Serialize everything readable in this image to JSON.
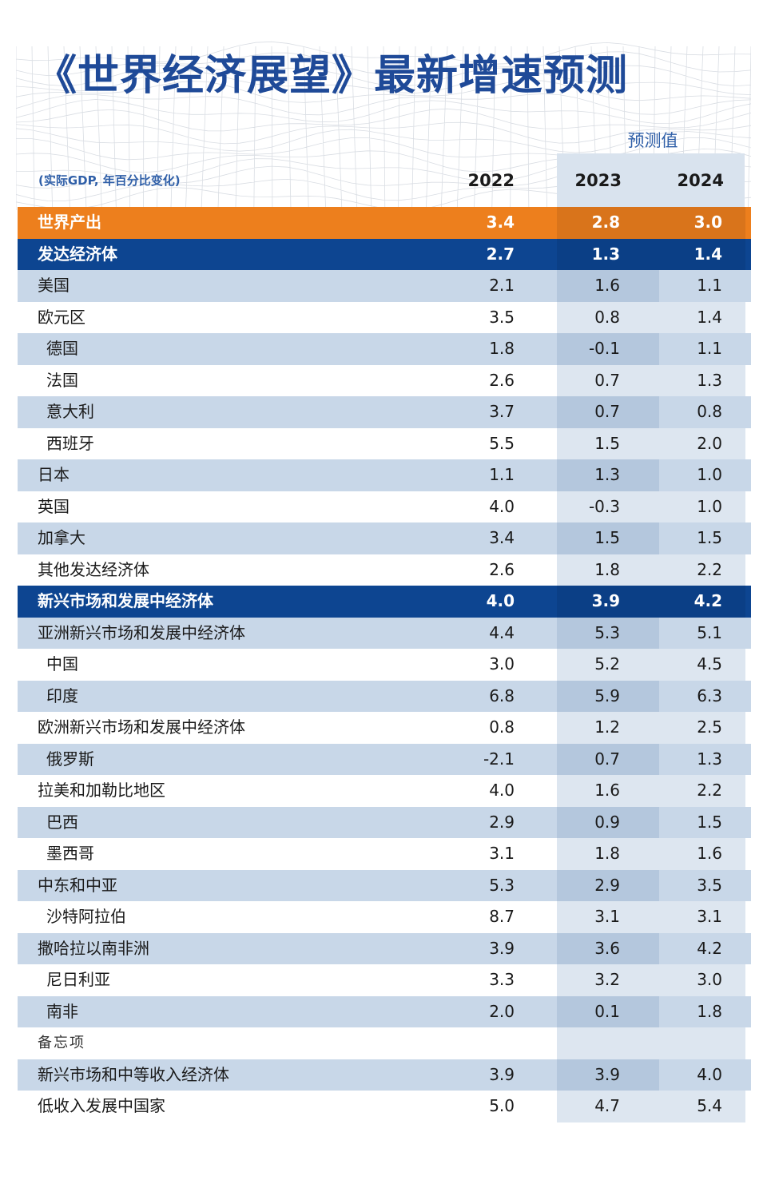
{
  "title": "《世界经济展望》最新增速预测",
  "forecast_label": "预测值",
  "units_note": "(实际GDP, 年百分比变化)",
  "colors": {
    "title": "#1f4a98",
    "highlight_orange": "#ed7f1d",
    "highlight_navy": "#0d4591",
    "band": "#c8d7e8"
  },
  "chart_data": {
    "type": "table",
    "columns": [
      "2022",
      "2023",
      "2024"
    ],
    "rows": [
      {
        "label": "世界产出",
        "values": [
          "3.4",
          "2.8",
          "3.0"
        ],
        "style": "orange",
        "indent": false
      },
      {
        "label": "发达经济体",
        "values": [
          "2.7",
          "1.3",
          "1.4"
        ],
        "style": "navy",
        "indent": false
      },
      {
        "label": "美国",
        "values": [
          "2.1",
          "1.6",
          "1.1"
        ],
        "style": "light",
        "indent": false
      },
      {
        "label": "欧元区",
        "values": [
          "3.5",
          "0.8",
          "1.4"
        ],
        "style": "plain",
        "indent": false
      },
      {
        "label": "德国",
        "values": [
          "1.8",
          "-0.1",
          "1.1"
        ],
        "style": "light",
        "indent": true
      },
      {
        "label": "法国",
        "values": [
          "2.6",
          "0.7",
          "1.3"
        ],
        "style": "plain",
        "indent": true
      },
      {
        "label": "意大利",
        "values": [
          "3.7",
          "0.7",
          "0.8"
        ],
        "style": "light",
        "indent": true
      },
      {
        "label": "西班牙",
        "values": [
          "5.5",
          "1.5",
          "2.0"
        ],
        "style": "plain",
        "indent": true
      },
      {
        "label": "日本",
        "values": [
          "1.1",
          "1.3",
          "1.0"
        ],
        "style": "light",
        "indent": false
      },
      {
        "label": "英国",
        "values": [
          "4.0",
          "-0.3",
          "1.0"
        ],
        "style": "plain",
        "indent": false
      },
      {
        "label": "加拿大",
        "values": [
          "3.4",
          "1.5",
          "1.5"
        ],
        "style": "light",
        "indent": false
      },
      {
        "label": "其他发达经济体",
        "values": [
          "2.6",
          "1.8",
          "2.2"
        ],
        "style": "plain",
        "indent": false
      },
      {
        "label": "新兴市场和发展中经济体",
        "values": [
          "4.0",
          "3.9",
          "4.2"
        ],
        "style": "navy",
        "indent": false
      },
      {
        "label": "亚洲新兴市场和发展中经济体",
        "values": [
          "4.4",
          "5.3",
          "5.1"
        ],
        "style": "light",
        "indent": false
      },
      {
        "label": "中国",
        "values": [
          "3.0",
          "5.2",
          "4.5"
        ],
        "style": "plain",
        "indent": true
      },
      {
        "label": "印度",
        "values": [
          "6.8",
          "5.9",
          "6.3"
        ],
        "style": "light",
        "indent": true
      },
      {
        "label": "欧洲新兴市场和发展中经济体",
        "values": [
          "0.8",
          "1.2",
          "2.5"
        ],
        "style": "plain",
        "indent": false
      },
      {
        "label": "俄罗斯",
        "values": [
          "-2.1",
          "0.7",
          "1.3"
        ],
        "style": "light",
        "indent": true
      },
      {
        "label": "拉美和加勒比地区",
        "values": [
          "4.0",
          "1.6",
          "2.2"
        ],
        "style": "plain",
        "indent": false
      },
      {
        "label": "巴西",
        "values": [
          "2.9",
          "0.9",
          "1.5"
        ],
        "style": "light",
        "indent": true
      },
      {
        "label": "墨西哥",
        "values": [
          "3.1",
          "1.8",
          "1.6"
        ],
        "style": "plain",
        "indent": true
      },
      {
        "label": "中东和中亚",
        "values": [
          "5.3",
          "2.9",
          "3.5"
        ],
        "style": "light",
        "indent": false
      },
      {
        "label": "沙特阿拉伯",
        "values": [
          "8.7",
          "3.1",
          "3.1"
        ],
        "style": "plain",
        "indent": true
      },
      {
        "label": "撒哈拉以南非洲",
        "values": [
          "3.9",
          "3.6",
          "4.2"
        ],
        "style": "light",
        "indent": false
      },
      {
        "label": "尼日利亚",
        "values": [
          "3.3",
          "3.2",
          "3.0"
        ],
        "style": "plain",
        "indent": true
      },
      {
        "label": "南非",
        "values": [
          "2.0",
          "0.1",
          "1.8"
        ],
        "style": "light",
        "indent": true
      },
      {
        "label": "备忘项",
        "values": [
          "",
          "",
          ""
        ],
        "style": "memo",
        "indent": false
      },
      {
        "label": "新兴市场和中等收入经济体",
        "values": [
          "3.9",
          "3.9",
          "4.0"
        ],
        "style": "light",
        "indent": false
      },
      {
        "label": "低收入发展中国家",
        "values": [
          "5.0",
          "4.7",
          "5.4"
        ],
        "style": "plain",
        "indent": false
      }
    ]
  }
}
